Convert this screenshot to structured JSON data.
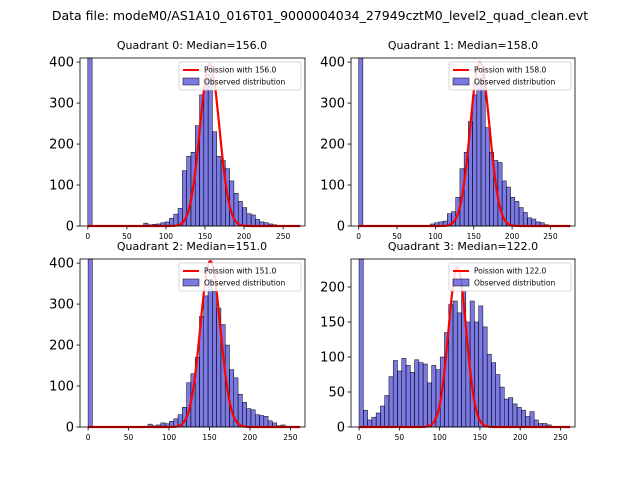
{
  "figure_title": "Data file: modeM0/AS1A10_016T01_9000004034_27949cztM0_level2_quad_clean.evt",
  "colors": {
    "bar_fill": "#0000c8",
    "bar_edge": "#000000",
    "poisson_line": "#ff0000"
  },
  "chart_data": [
    {
      "type": "bar",
      "title": "Quadrant 0: Median=156.0",
      "median": 156.0,
      "xlim": [
        -10,
        278
      ],
      "ylim": [
        0,
        410
      ],
      "xticks": [
        "0",
        "50",
        "100",
        "150",
        "200",
        "250"
      ],
      "yticks": [
        "0",
        "100",
        "200",
        "300",
        "400"
      ],
      "legend": [
        "Poission with 156.0",
        "Observed distribution"
      ],
      "legend_loc": "upper right",
      "bin_width": 5.5,
      "bin_starts": [
        0,
        71.5,
        77,
        82.5,
        88,
        93.5,
        99,
        104.5,
        110,
        115.5,
        121,
        126.5,
        132,
        137.5,
        143,
        148.5,
        154,
        159.5,
        165,
        170.5,
        176,
        181.5,
        187,
        192.5,
        198,
        203.5,
        209,
        214.5,
        220,
        225.5,
        231,
        236.5,
        242
      ],
      "observed": [
        410,
        7,
        3,
        4,
        5,
        8,
        10,
        19,
        29,
        43,
        135,
        170,
        180,
        245,
        320,
        360,
        370,
        230,
        170,
        160,
        140,
        110,
        80,
        60,
        45,
        30,
        27,
        16,
        10,
        8,
        5,
        3,
        1
      ],
      "poisson_mean": 156.0,
      "poisson_peak": 395
    },
    {
      "type": "bar",
      "title": "Quadrant 1: Median=158.0",
      "median": 158.0,
      "xlim": [
        -10,
        282
      ],
      "ylim": [
        0,
        410
      ],
      "xticks": [
        "0",
        "50",
        "100",
        "150",
        "200",
        "250"
      ],
      "yticks": [
        "0",
        "100",
        "200",
        "300",
        "400"
      ],
      "legend": [
        "Poission with 158.0",
        "Observed distribution"
      ],
      "legend_loc": "upper right",
      "bin_width": 5.5,
      "bin_starts": [
        0,
        93.5,
        99,
        104.5,
        110,
        115.5,
        121,
        126.5,
        132,
        137.5,
        143,
        148.5,
        154,
        159.5,
        165,
        170.5,
        176,
        181.5,
        187,
        192.5,
        198,
        203.5,
        209,
        214.5,
        220,
        225.5,
        231,
        236.5,
        242,
        247.5
      ],
      "observed": [
        410,
        5,
        8,
        10,
        12,
        30,
        35,
        70,
        140,
        180,
        255,
        320,
        350,
        370,
        240,
        180,
        160,
        155,
        110,
        95,
        70,
        60,
        45,
        33,
        20,
        17,
        10,
        8,
        3,
        1
      ],
      "poisson_mean": 158.0,
      "poisson_peak": 400
    },
    {
      "type": "bar",
      "title": "Quadrant 2: Median=151.0",
      "median": 151.0,
      "xlim": [
        -10,
        268
      ],
      "ylim": [
        0,
        410
      ],
      "xticks": [
        "0",
        "50",
        "100",
        "150",
        "200",
        "250"
      ],
      "yticks": [
        "0",
        "100",
        "200",
        "300",
        "400"
      ],
      "legend": [
        "Poission with 151.0",
        "Observed distribution"
      ],
      "legend_loc": "upper right",
      "bin_width": 5.3,
      "bin_starts": [
        0,
        74,
        79.3,
        84.6,
        89.9,
        95.2,
        100.5,
        105.8,
        111.1,
        116.4,
        121.7,
        127,
        132.3,
        137.6,
        142.9,
        148.2,
        153.5,
        158.8,
        164.1,
        169.4,
        174.7,
        180,
        185.3,
        190.6,
        195.9,
        201.2,
        206.5,
        211.8,
        217.1,
        222.4,
        227.7,
        233,
        238.3,
        243.6
      ],
      "observed": [
        410,
        7,
        3,
        5,
        10,
        8,
        14,
        20,
        30,
        48,
        108,
        130,
        170,
        270,
        320,
        360,
        330,
        290,
        250,
        200,
        140,
        120,
        80,
        60,
        45,
        42,
        30,
        28,
        26,
        15,
        10,
        3,
        5,
        1
      ],
      "poisson_mean": 151.0,
      "poisson_peak": 405
    },
    {
      "type": "bar",
      "title": "Quadrant 3: Median=122.0",
      "median": 122.0,
      "xlim": [
        -10,
        268
      ],
      "ylim": [
        0,
        240
      ],
      "xticks": [
        "0",
        "50",
        "100",
        "150",
        "200",
        "250"
      ],
      "yticks": [
        "0",
        "50",
        "100",
        "150",
        "200"
      ],
      "legend": [
        "Poission with 122.0",
        "Observed distribution"
      ],
      "legend_loc": "upper right",
      "bin_width": 5.3,
      "bin_starts": [
        0,
        5.3,
        10.6,
        15.9,
        21.2,
        26.5,
        31.8,
        37.1,
        42.4,
        47.7,
        53,
        58.3,
        63.6,
        68.9,
        74.2,
        79.5,
        84.8,
        90.1,
        95.4,
        100.7,
        106,
        111.3,
        116.6,
        121.9,
        127.2,
        132.5,
        137.8,
        143.1,
        148.4,
        153.7,
        159,
        164.3,
        169.6,
        174.9,
        180.2,
        185.5,
        190.8,
        196.1,
        201.4,
        206.7,
        212,
        217.3,
        222.6,
        227.9,
        233.2,
        238.5,
        243.8
      ],
      "observed": [
        240,
        24,
        10,
        14,
        20,
        30,
        45,
        72,
        95,
        80,
        98,
        88,
        78,
        96,
        92,
        90,
        63,
        88,
        82,
        100,
        135,
        175,
        180,
        163,
        195,
        150,
        180,
        150,
        173,
        143,
        104,
        92,
        75,
        57,
        40,
        42,
        33,
        28,
        24,
        15,
        22,
        10,
        5,
        5,
        3,
        1,
        1
      ],
      "poisson_mean": 122.0,
      "poisson_peak": 228
    }
  ]
}
